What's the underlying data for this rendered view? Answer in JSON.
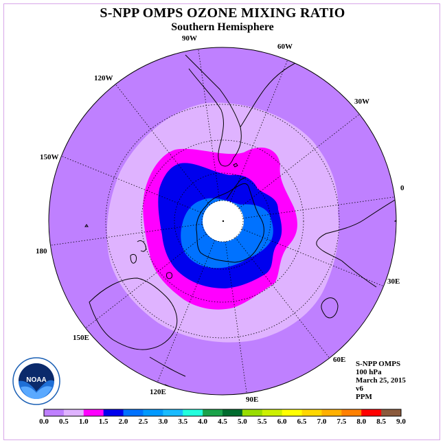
{
  "title": "S-NPP OMPS OZONE MIXING RATIO",
  "subtitle": "Southern Hemisphere",
  "longitude_labels": [
    "90W",
    "60W",
    "30W",
    "0",
    "30E",
    "60E",
    "90E",
    "120E",
    "150E",
    "180",
    "150W",
    "120W"
  ],
  "info": {
    "instrument": "S-NPP OMPS",
    "level": "100 hPa",
    "date": "March 25, 2015",
    "version": "v6",
    "units": "PPM"
  },
  "logo": {
    "text": "NOAA",
    "ring_text": "NATIONAL OCEANIC AND ATMOSPHERIC ADMINISTRATION · U.S. DEPARTMENT OF COMMERCE"
  },
  "colorbar": {
    "labels": [
      "0.0",
      "0.5",
      "1.0",
      "1.5",
      "2.0",
      "2.5",
      "3.0",
      "3.5",
      "4.0",
      "4.5",
      "5.0",
      "5.5",
      "6.0",
      "6.5",
      "7.0",
      "7.5",
      "8.0",
      "8.5",
      "9.0"
    ],
    "colors": [
      "#bf80ff",
      "#dfb3ff",
      "#ff00ff",
      "#0000ee",
      "#0072ff",
      "#0099ff",
      "#19bbff",
      "#22ffdd",
      "#1aa34a",
      "#006b2e",
      "#99dd00",
      "#ccf000",
      "#ffff00",
      "#ffd700",
      "#ffb000",
      "#ff8000",
      "#ff0000",
      "#8b5a3c"
    ]
  },
  "map_colors": {
    "background": "#bf80ff",
    "band_0_5": "#dfb3ff",
    "band_1_0": "#ff00ff",
    "band_1_5": "#0000ee",
    "band_2_0": "#0072ff",
    "pole_hole": "#ffffff"
  }
}
